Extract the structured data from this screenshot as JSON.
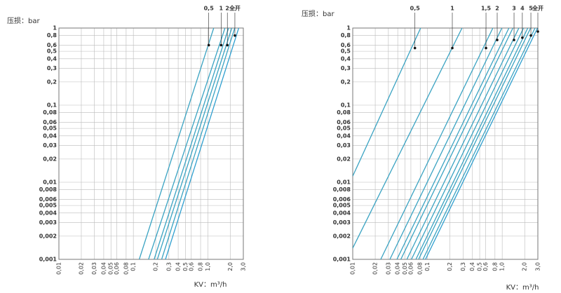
{
  "chart_data": [
    {
      "type": "line",
      "y_label": "压损：bar",
      "x_label": "KV：m³/h",
      "log": true,
      "grid": true,
      "xlim": [
        0.01,
        3.0
      ],
      "ylim": [
        0.001,
        1
      ],
      "xticks": [
        {
          "value": 0.01,
          "label": "0,01"
        },
        {
          "value": 0.02,
          "label": "0,02"
        },
        {
          "value": 0.03,
          "label": "0,03"
        },
        {
          "value": 0.04,
          "label": "0,04"
        },
        {
          "value": 0.05,
          "label": "0,05"
        },
        {
          "value": 0.06,
          "label": "0,06"
        },
        {
          "value": 0.08,
          "label": "0,08"
        },
        {
          "value": 0.1,
          "label": "0,1"
        },
        {
          "value": 0.2,
          "label": "0,2"
        },
        {
          "value": 0.3,
          "label": "0,3"
        },
        {
          "value": 0.4,
          "label": "0,4"
        },
        {
          "value": 0.5,
          "label": "0,5"
        },
        {
          "value": 0.6,
          "label": "0,6"
        },
        {
          "value": 0.8,
          "label": "0,8"
        },
        {
          "value": 1.0,
          "label": "1,0"
        },
        {
          "value": 2.0,
          "label": "2,0"
        },
        {
          "value": 3.0,
          "label": "3,0"
        }
      ],
      "yticks": [
        {
          "value": 0.001,
          "label": "0,001"
        },
        {
          "value": 0.002,
          "label": "0,002"
        },
        {
          "value": 0.003,
          "label": "0,003"
        },
        {
          "value": 0.004,
          "label": "0,004"
        },
        {
          "value": 0.005,
          "label": "0,005"
        },
        {
          "value": 0.006,
          "label": "0,006"
        },
        {
          "value": 0.008,
          "label": "0,008"
        },
        {
          "value": 0.01,
          "label": "0,01"
        },
        {
          "value": 0.02,
          "label": "0,02"
        },
        {
          "value": 0.03,
          "label": "0,03"
        },
        {
          "value": 0.04,
          "label": "0,04"
        },
        {
          "value": 0.05,
          "label": "0,05"
        },
        {
          "value": 0.06,
          "label": "0,06"
        },
        {
          "value": 0.08,
          "label": "0,08"
        },
        {
          "value": 0.1,
          "label": "0,1"
        },
        {
          "value": 0.2,
          "label": "0,2"
        },
        {
          "value": 0.3,
          "label": "0,3"
        },
        {
          "value": 0.4,
          "label": "0,4"
        },
        {
          "value": 0.5,
          "label": "0,5"
        },
        {
          "value": 0.6,
          "label": "0,6"
        },
        {
          "value": 0.8,
          "label": "0,8"
        },
        1
      ],
      "series": [
        {
          "color": "#3aa3c2",
          "x": [
            0.12,
            1.2
          ],
          "values": [
            0.001,
            1
          ]
        },
        {
          "color": "#3aa3c2",
          "x": [
            0.16,
            1.7
          ],
          "values": [
            0.001,
            1
          ]
        },
        {
          "color": "#3aa3c2",
          "x": [
            0.19,
            1.9
          ],
          "values": [
            0.001,
            1
          ]
        },
        {
          "color": "#3aa3c2",
          "x": [
            0.21,
            2.1
          ],
          "values": [
            0.001,
            1
          ]
        },
        {
          "color": "#3aa3c2",
          "x": [
            0.24,
            2.3
          ],
          "values": [
            0.001,
            1
          ]
        },
        {
          "color": "#2f9fcf",
          "x": [
            0.27,
            2.6
          ],
          "values": [
            0.001,
            1
          ]
        }
      ],
      "markers": [
        {
          "label": "0,5",
          "x": 1.03,
          "y": 0.6
        },
        {
          "label": "1",
          "x": 1.51,
          "y": 0.6
        },
        {
          "label": "2",
          "x": 1.83,
          "y": 0.6
        },
        {
          "label": "全开",
          "x": 2.31,
          "y": 0.8
        }
      ]
    },
    {
      "type": "line",
      "y_label": "压损：bar",
      "x_label": "KV：m³/h",
      "log": true,
      "grid": true,
      "xlim": [
        0.01,
        3.0
      ],
      "ylim": [
        0.001,
        1
      ],
      "xticks": [
        {
          "value": 0.01,
          "label": "0,01"
        },
        {
          "value": 0.02,
          "label": "0,02"
        },
        {
          "value": 0.03,
          "label": "0,03"
        },
        {
          "value": 0.04,
          "label": "0,04"
        },
        {
          "value": 0.05,
          "label": "0,05"
        },
        {
          "value": 0.06,
          "label": "0,06"
        },
        {
          "value": 0.08,
          "label": "0,08"
        },
        {
          "value": 0.1,
          "label": "0,1"
        },
        {
          "value": 0.2,
          "label": "0,2"
        },
        {
          "value": 0.3,
          "label": "0,3"
        },
        {
          "value": 0.4,
          "label": "0,4"
        },
        {
          "value": 0.5,
          "label": "0,5"
        },
        {
          "value": 0.6,
          "label": "0,6"
        },
        {
          "value": 0.8,
          "label": "0,8"
        },
        {
          "value": 1.0,
          "label": "1,0"
        },
        {
          "value": 2.0,
          "label": "2,0"
        },
        {
          "value": 3.0,
          "label": "3,0"
        }
      ],
      "yticks": [
        {
          "value": 0.001,
          "label": "0,001"
        },
        {
          "value": 0.002,
          "label": "0,002"
        },
        {
          "value": 0.003,
          "label": "0,003"
        },
        {
          "value": 0.004,
          "label": "0,004"
        },
        {
          "value": 0.005,
          "label": "0,005"
        },
        {
          "value": 0.006,
          "label": "0,006"
        },
        {
          "value": 0.008,
          "label": "0,008"
        },
        {
          "value": 0.01,
          "label": "0,01"
        },
        {
          "value": 0.02,
          "label": "0,02"
        },
        {
          "value": 0.03,
          "label": "0,03"
        },
        {
          "value": 0.04,
          "label": "0,04"
        },
        {
          "value": 0.05,
          "label": "0,05"
        },
        {
          "value": 0.06,
          "label": "0,06"
        },
        {
          "value": 0.08,
          "label": "0,08"
        },
        {
          "value": 0.1,
          "label": "0,1"
        },
        {
          "value": 0.2,
          "label": "0,2"
        },
        {
          "value": 0.3,
          "label": "0,3"
        },
        {
          "value": 0.4,
          "label": "0,4"
        },
        {
          "value": 0.5,
          "label": "0,5"
        },
        {
          "value": 0.6,
          "label": "0,6"
        },
        {
          "value": 0.8,
          "label": "0,8"
        },
        1
      ],
      "series": [
        {
          "color": "#3aa3c2",
          "x": [
            0.01,
            0.081
          ],
          "values": [
            0.012,
            1
          ]
        },
        {
          "color": "#3aa3c2",
          "x": [
            0.01,
            0.29
          ],
          "values": [
            0.0014,
            1
          ]
        },
        {
          "color": "#3aa3c2",
          "x": [
            0.0237,
            0.75
          ],
          "values": [
            0.001,
            1
          ]
        },
        {
          "color": "#3aa3c2",
          "x": [
            0.0314,
            0.99
          ],
          "values": [
            0.001,
            1
          ]
        },
        {
          "color": "#3aa3c2",
          "x": [
            0.039,
            1.23
          ],
          "values": [
            0.001,
            1
          ]
        },
        {
          "color": "#3aa3c2",
          "x": [
            0.044,
            1.39
          ],
          "values": [
            0.001,
            1
          ]
        },
        {
          "color": "#3aa3c2",
          "x": [
            0.053,
            1.67
          ],
          "values": [
            0.001,
            1
          ]
        },
        {
          "color": "#3aa3c2",
          "x": [
            0.061,
            1.93
          ],
          "values": [
            0.001,
            1
          ]
        },
        {
          "color": "#3aa3c2",
          "x": [
            0.07,
            2.2
          ],
          "values": [
            0.001,
            1
          ]
        },
        {
          "color": "#3aa3c2",
          "x": [
            0.076,
            2.4
          ],
          "values": [
            0.001,
            1
          ]
        },
        {
          "color": "#3aa3c2",
          "x": [
            0.087,
            2.75
          ],
          "values": [
            0.001,
            1
          ]
        },
        {
          "color": "#2f9fcf",
          "x": [
            0.094,
            2.97
          ],
          "values": [
            0.001,
            1
          ]
        }
      ],
      "markers": [
        {
          "label": "0,5",
          "x": 0.068,
          "y": 0.55
        },
        {
          "label": "1",
          "x": 0.215,
          "y": 0.55
        },
        {
          "label": "1,5",
          "x": 0.607,
          "y": 0.55
        },
        {
          "label": "2",
          "x": 0.857,
          "y": 0.7
        },
        {
          "label": "3",
          "x": 1.44,
          "y": 0.7
        },
        {
          "label": "4",
          "x": 1.86,
          "y": 0.75
        },
        {
          "label": "5",
          "x": 2.42,
          "y": 0.8
        },
        {
          "label": "全开",
          "x": 3.0,
          "y": 0.9
        }
      ]
    }
  ]
}
